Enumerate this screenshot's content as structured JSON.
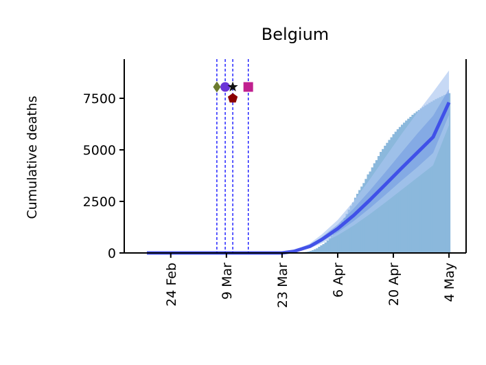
{
  "chart_data": {
    "type": "bar",
    "title": "Belgium",
    "xlabel": "",
    "ylabel": "Cumulative deaths",
    "x_ticks": [
      "24 Feb",
      "9 Mar",
      "23 Mar",
      "6 Apr",
      "20 Apr",
      "4 May"
    ],
    "x_tick_days": [
      0,
      14,
      28,
      42,
      56,
      70
    ],
    "y_ticks": [
      0,
      2500,
      5000,
      7500
    ],
    "ylim": [
      0,
      9400
    ],
    "xlim": [
      -11.7,
      74.3
    ],
    "grid": false,
    "legend": "none",
    "bar_start_day": 31,
    "bars": [
      1,
      4,
      10,
      19,
      28,
      41,
      53,
      71,
      100,
      135,
      180,
      225,
      300,
      370,
      430,
      510,
      605,
      720,
      835,
      940,
      1050,
      1210,
      1375,
      1530,
      1700,
      1900,
      2100,
      2280,
      2450,
      2680,
      2870,
      3050,
      3220,
      3390,
      3590,
      3810,
      3950,
      4150,
      4350,
      4500,
      4700,
      4900,
      5040,
      5200,
      5340,
      5480,
      5610,
      5760,
      5880,
      6000,
      6110,
      6220,
      6320,
      6420,
      6510,
      6600,
      6700,
      6780,
      6860,
      6930,
      7010,
      7080,
      7150,
      7210,
      7280,
      7340,
      7400,
      7460,
      7510,
      7560,
      7610,
      7660,
      7700,
      7750
    ],
    "model_start_day": -6,
    "model_end_day": 70,
    "model_mean": [
      [
        -6,
        0
      ],
      [
        28,
        0
      ],
      [
        31,
        80
      ],
      [
        35,
        320
      ],
      [
        38,
        650
      ],
      [
        42,
        1180
      ],
      [
        46,
        1820
      ],
      [
        50,
        2550
      ],
      [
        54,
        3320
      ],
      [
        58,
        4100
      ],
      [
        62,
        4860
      ],
      [
        66,
        5620
      ],
      [
        70,
        7300
      ]
    ],
    "model_outer_upper": [
      [
        -6,
        0
      ],
      [
        28,
        0
      ],
      [
        31,
        120
      ],
      [
        35,
        460
      ],
      [
        38,
        900
      ],
      [
        42,
        1600
      ],
      [
        46,
        2500
      ],
      [
        50,
        3550
      ],
      [
        54,
        4650
      ],
      [
        58,
        5750
      ],
      [
        62,
        6800
      ],
      [
        66,
        7800
      ],
      [
        70,
        8850
      ]
    ],
    "model_outer_lower": [
      [
        -6,
        0
      ],
      [
        28,
        0
      ],
      [
        31,
        50
      ],
      [
        35,
        230
      ],
      [
        38,
        470
      ],
      [
        42,
        860
      ],
      [
        46,
        1330
      ],
      [
        50,
        1870
      ],
      [
        54,
        2450
      ],
      [
        58,
        3050
      ],
      [
        62,
        3650
      ],
      [
        66,
        4250
      ],
      [
        70,
        6200
      ]
    ],
    "model_inner_upper": [
      [
        -6,
        0
      ],
      [
        28,
        0
      ],
      [
        31,
        100
      ],
      [
        35,
        390
      ],
      [
        38,
        770
      ],
      [
        42,
        1380
      ],
      [
        46,
        2150
      ],
      [
        50,
        3010
      ],
      [
        54,
        3920
      ],
      [
        58,
        4860
      ],
      [
        62,
        5780
      ],
      [
        66,
        6650
      ],
      [
        70,
        7950
      ]
    ],
    "model_inner_lower": [
      [
        -6,
        0
      ],
      [
        28,
        0
      ],
      [
        31,
        65
      ],
      [
        35,
        270
      ],
      [
        38,
        550
      ],
      [
        42,
        1000
      ],
      [
        46,
        1540
      ],
      [
        50,
        2160
      ],
      [
        54,
        2820
      ],
      [
        58,
        3500
      ],
      [
        62,
        4150
      ],
      [
        66,
        4850
      ],
      [
        70,
        6700
      ]
    ],
    "interventions": [
      {
        "day": 11.6,
        "marker": "diamond",
        "y": 8050,
        "color": "#6b7a2e"
      },
      {
        "day": 13.7,
        "marker": "circle",
        "y": 8050,
        "color": "#6a33d8"
      },
      {
        "day": 15.6,
        "marker": "star",
        "y": 8050,
        "color": "#111111"
      },
      {
        "day": 15.6,
        "marker": "pentagon",
        "y": 7500,
        "color": "#8b0000"
      },
      {
        "day": 19.5,
        "marker": "square",
        "y": 8050,
        "color": "#c0208f"
      }
    ],
    "colors": {
      "bars": "#8bb8dc",
      "mean_line": "#3847e8",
      "outer_band": "#a9c4ef",
      "inner_band": "#6f97e0",
      "intervention_lines": "#0000ff"
    }
  }
}
